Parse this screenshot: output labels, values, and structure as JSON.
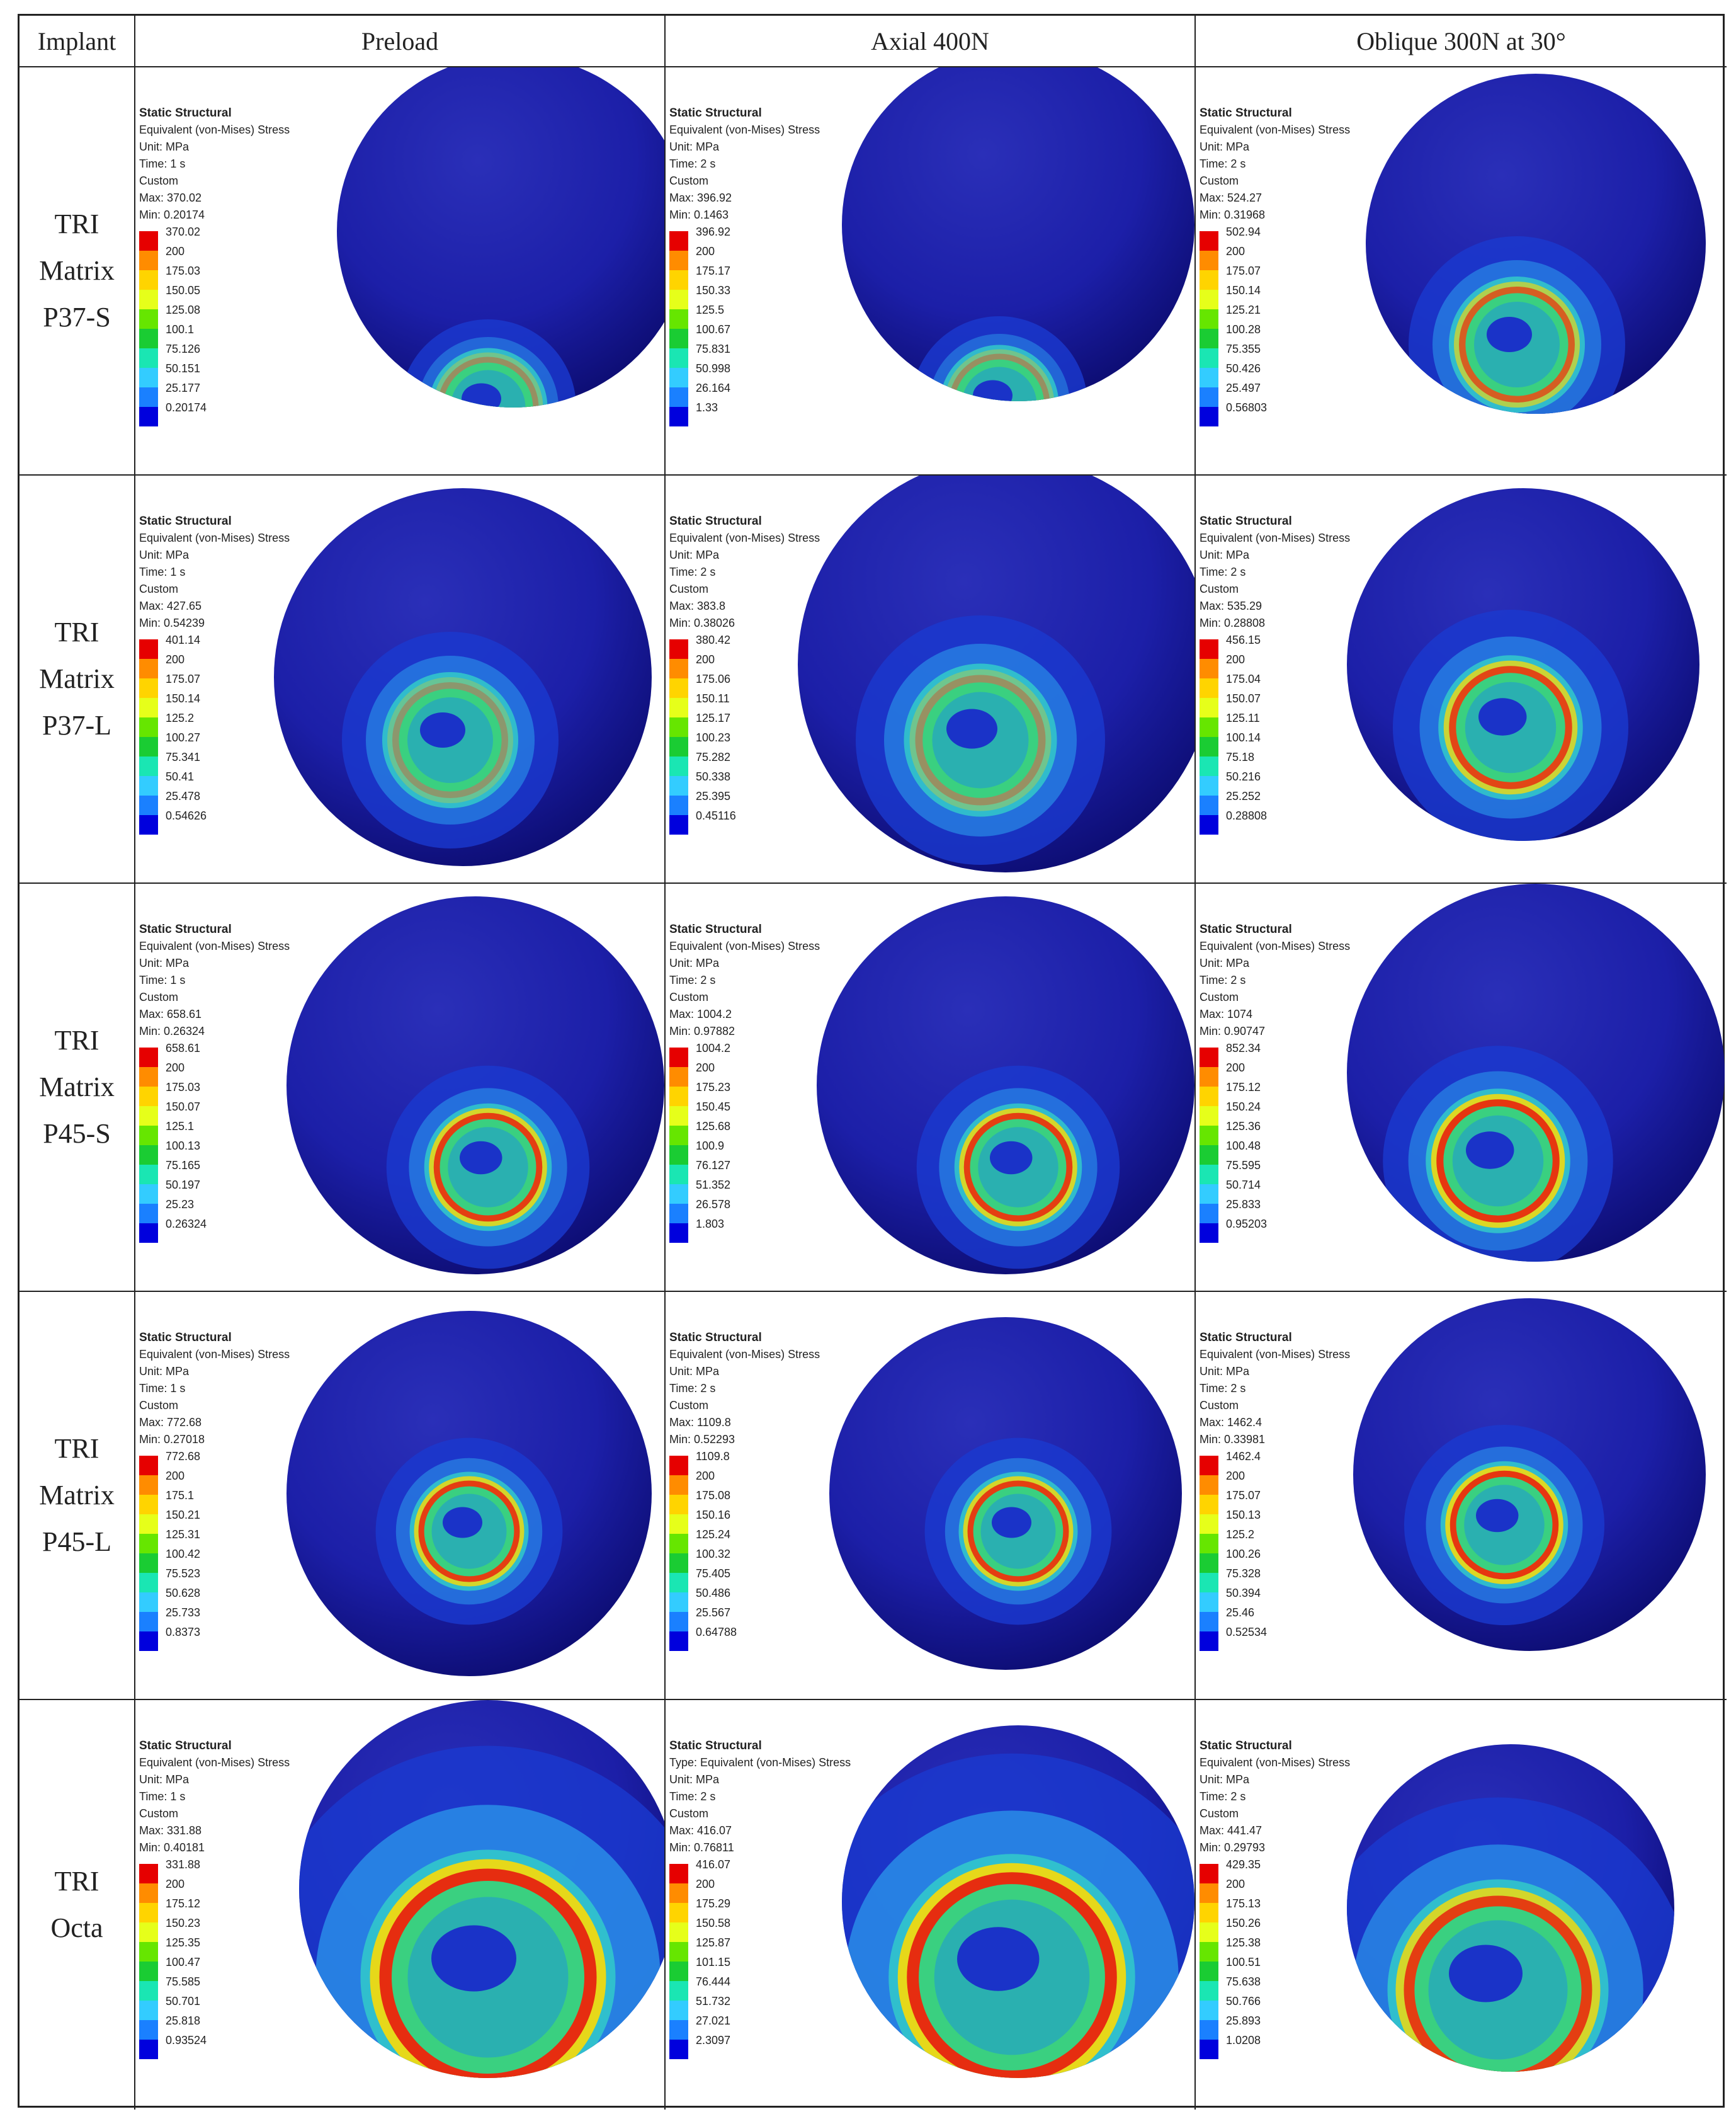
{
  "headers": {
    "implant": "Implant",
    "preload": "Preload",
    "axial": "Axial 400N",
    "oblique": "Oblique 300N at 30°"
  },
  "scale_colors": [
    "#e60000",
    "#ff8c00",
    "#ffd400",
    "#e6ff1a",
    "#66e600",
    "#1acc33",
    "#1ae6b3",
    "#33ccff",
    "#1a80ff",
    "#0000dd"
  ],
  "rows": [
    {
      "label": [
        "TRI",
        "Matrix",
        "P37-S"
      ],
      "cells": [
        {
          "title": "Static Structural",
          "type": "Equivalent (von-Mises) Stress",
          "unit": "Unit: MPa",
          "time": "Time: 1 s",
          "custom": "Custom",
          "max": "Max: 370.02",
          "min": "Min: 0.20174",
          "scale": [
            "370.02",
            "200",
            "175.03",
            "150.05",
            "125.08",
            "100.1",
            "75.126",
            "50.151",
            "25.177",
            "0.20174"
          ]
        },
        {
          "title": "Static Structural",
          "type": "Equivalent (von-Mises) Stress",
          "unit": "Unit: MPa",
          "time": "Time: 2 s",
          "custom": "Custom",
          "max": "Max: 396.92",
          "min": "Min: 0.1463",
          "scale": [
            "396.92",
            "200",
            "175.17",
            "150.33",
            "125.5",
            "100.67",
            "75.831",
            "50.998",
            "26.164",
            "1.33"
          ]
        },
        {
          "title": "Static Structural",
          "type": "Equivalent (von-Mises) Stress",
          "unit": "Unit: MPa",
          "time": "Time: 2 s",
          "custom": "Custom",
          "max": "Max: 524.27",
          "min": "Min: 0.31968",
          "scale": [
            "502.94",
            "200",
            "175.07",
            "150.14",
            "125.21",
            "100.28",
            "75.355",
            "50.426",
            "25.497",
            "0.56803"
          ]
        }
      ]
    },
    {
      "label": [
        "TRI",
        "Matrix",
        "P37-L"
      ],
      "cells": [
        {
          "title": "Static Structural",
          "type": "Equivalent (von-Mises) Stress",
          "unit": "Unit: MPa",
          "time": "Time: 1 s",
          "custom": "Custom",
          "max": "Max: 427.65",
          "min": "Min: 0.54239",
          "scale": [
            "401.14",
            "200",
            "175.07",
            "150.14",
            "125.2",
            "100.27",
            "75.341",
            "50.41",
            "25.478",
            "0.54626"
          ]
        },
        {
          "title": "Static Structural",
          "type": "Equivalent (von-Mises) Stress",
          "unit": "Unit: MPa",
          "time": "Time: 2 s",
          "custom": "Custom",
          "max": "Max: 383.8",
          "min": "Min: 0.38026",
          "scale": [
            "380.42",
            "200",
            "175.06",
            "150.11",
            "125.17",
            "100.23",
            "75.282",
            "50.338",
            "25.395",
            "0.45116"
          ]
        },
        {
          "title": "Static Structural",
          "type": "Equivalent (von-Mises) Stress",
          "unit": "Unit: MPa",
          "time": "Time: 2 s",
          "custom": "Custom",
          "max": "Max: 535.29",
          "min": "Min: 0.28808",
          "scale": [
            "456.15",
            "200",
            "175.04",
            "150.07",
            "125.11",
            "100.14",
            "75.18",
            "50.216",
            "25.252",
            "0.28808"
          ]
        }
      ]
    },
    {
      "label": [
        "TRI",
        "Matrix",
        "P45-S"
      ],
      "cells": [
        {
          "title": "Static Structural",
          "type": "Equivalent (von-Mises) Stress",
          "unit": "Unit: MPa",
          "time": "Time: 1 s",
          "custom": "Custom",
          "max": "Max: 658.61",
          "min": "Min: 0.26324",
          "scale": [
            "658.61",
            "200",
            "175.03",
            "150.07",
            "125.1",
            "100.13",
            "75.165",
            "50.197",
            "25.23",
            "0.26324"
          ]
        },
        {
          "title": "Static Structural",
          "type": "Equivalent (von-Mises) Stress",
          "unit": "Unit: MPa",
          "time": "Time: 2 s",
          "custom": "Custom",
          "max": "Max: 1004.2",
          "min": "Min: 0.97882",
          "scale": [
            "1004.2",
            "200",
            "175.23",
            "150.45",
            "125.68",
            "100.9",
            "76.127",
            "51.352",
            "26.578",
            "1.803"
          ]
        },
        {
          "title": "Static Structural",
          "type": "Equivalent (von-Mises) Stress",
          "unit": "Unit: MPa",
          "time": "Time: 2 s",
          "custom": "Custom",
          "max": "Max: 1074",
          "min": "Min: 0.90747",
          "scale": [
            "852.34",
            "200",
            "175.12",
            "150.24",
            "125.36",
            "100.48",
            "75.595",
            "50.714",
            "25.833",
            "0.95203"
          ]
        }
      ]
    },
    {
      "label": [
        "TRI",
        "Matrix",
        "P45-L"
      ],
      "cells": [
        {
          "title": "Static Structural",
          "type": "Equivalent (von-Mises) Stress",
          "unit": "Unit: MPa",
          "time": "Time: 1 s",
          "custom": "Custom",
          "max": "Max: 772.68",
          "min": "Min: 0.27018",
          "scale": [
            "772.68",
            "200",
            "175.1",
            "150.21",
            "125.31",
            "100.42",
            "75.523",
            "50.628",
            "25.733",
            "0.8373"
          ]
        },
        {
          "title": "Static Structural",
          "type": "Equivalent (von-Mises) Stress",
          "unit": "Unit: MPa",
          "time": "Time: 2 s",
          "custom": "Custom",
          "max": "Max: 1109.8",
          "min": "Min: 0.52293",
          "scale": [
            "1109.8",
            "200",
            "175.08",
            "150.16",
            "125.24",
            "100.32",
            "75.405",
            "50.486",
            "25.567",
            "0.64788"
          ]
        },
        {
          "title": "Static Structural",
          "type": "Equivalent (von-Mises) Stress",
          "unit": "Unit: MPa",
          "time": "Time: 2 s",
          "custom": "Custom",
          "max": "Max: 1462.4",
          "min": "Min: 0.33981",
          "scale": [
            "1462.4",
            "200",
            "175.07",
            "150.13",
            "125.2",
            "100.26",
            "75.328",
            "50.394",
            "25.46",
            "0.52534"
          ]
        }
      ]
    },
    {
      "label": [
        "TRI",
        "Octa"
      ],
      "cells": [
        {
          "title": "Static Structural",
          "type": "Equivalent (von-Mises) Stress",
          "unit": "Unit: MPa",
          "time": "Time: 1 s",
          "custom": "Custom",
          "max": "Max: 331.88",
          "min": "Min: 0.40181",
          "scale": [
            "331.88",
            "200",
            "175.12",
            "150.23",
            "125.35",
            "100.47",
            "75.585",
            "50.701",
            "25.818",
            "0.93524"
          ]
        },
        {
          "title": "Static Structural",
          "type": "Type: Equivalent (von-Mises) Stress",
          "unit": "Unit: MPa",
          "time": "Time: 2 s",
          "custom": "Custom",
          "max": "Max: 416.07",
          "min": "Min: 0.76811",
          "scale": [
            "416.07",
            "200",
            "175.29",
            "150.58",
            "125.87",
            "101.15",
            "76.444",
            "51.732",
            "27.021",
            "2.3097"
          ]
        },
        {
          "title": "Static Structural",
          "type": "Equivalent (von-Mises) Stress",
          "unit": "Unit: MPa",
          "time": "Time: 2 s",
          "custom": "Custom",
          "max": "Max: 441.47",
          "min": "Min: 0.29793",
          "scale": [
            "429.35",
            "200",
            "175.13",
            "150.26",
            "125.38",
            "100.51",
            "75.638",
            "50.766",
            "25.893",
            "1.0208"
          ]
        }
      ]
    }
  ]
}
